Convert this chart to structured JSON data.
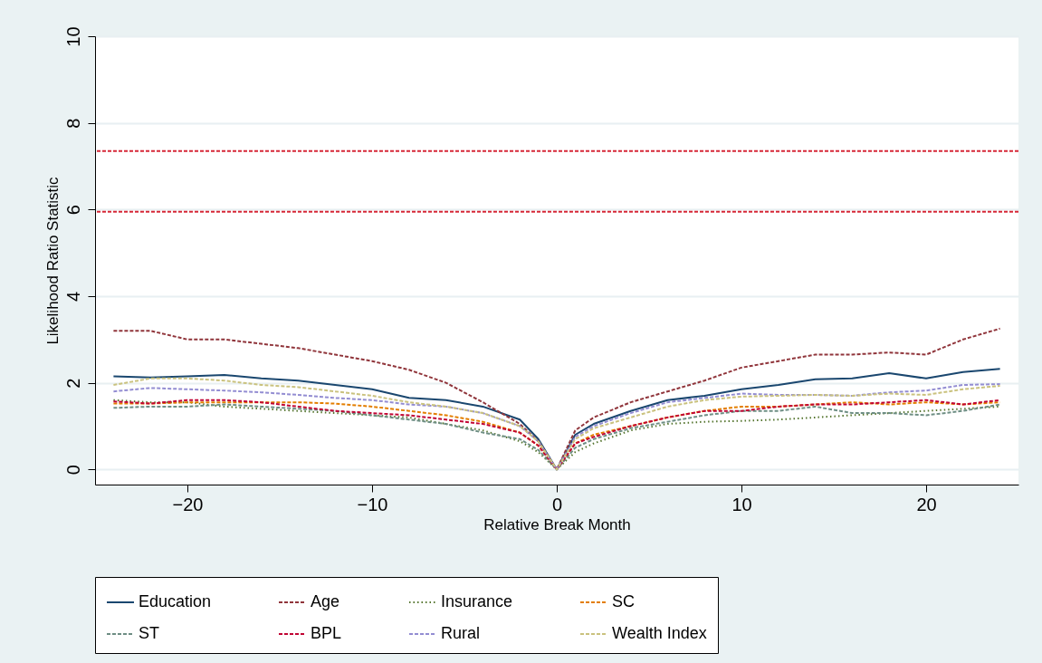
{
  "chart_data": {
    "type": "line",
    "xlabel": "Relative Break Month",
    "ylabel": "Likelihood Ratio Statistic",
    "x": [
      -24,
      -22,
      -20,
      -18,
      -16,
      -14,
      -12,
      -10,
      -8,
      -6,
      -4,
      -2,
      -1,
      0,
      1,
      2,
      4,
      6,
      8,
      10,
      12,
      14,
      16,
      18,
      20,
      22,
      24
    ],
    "series": [
      {
        "name": "Education",
        "color": "#1a476f",
        "line_style": "solid",
        "values": [
          2.15,
          2.12,
          2.15,
          2.18,
          2.1,
          2.05,
          1.95,
          1.85,
          1.65,
          1.6,
          1.45,
          1.15,
          0.7,
          0,
          0.8,
          1.05,
          1.35,
          1.6,
          1.7,
          1.85,
          1.95,
          2.08,
          2.1,
          2.22,
          2.1,
          2.25,
          2.32
        ]
      },
      {
        "name": "Age",
        "color": "#90353b",
        "line_style": "dashed",
        "values": [
          3.2,
          3.2,
          3.0,
          3.0,
          2.9,
          2.8,
          2.65,
          2.5,
          2.3,
          2.0,
          1.55,
          1.05,
          0.65,
          0,
          0.9,
          1.2,
          1.55,
          1.8,
          2.05,
          2.35,
          2.5,
          2.65,
          2.65,
          2.7,
          2.65,
          3.0,
          3.25
        ]
      },
      {
        "name": "Insurance",
        "color": "#55752f",
        "line_style": "dotted",
        "values": [
          1.6,
          1.55,
          1.55,
          1.45,
          1.4,
          1.35,
          1.3,
          1.25,
          1.2,
          1.05,
          0.9,
          0.65,
          0.4,
          0,
          0.4,
          0.6,
          0.9,
          1.05,
          1.1,
          1.12,
          1.15,
          1.2,
          1.25,
          1.3,
          1.35,
          1.4,
          1.45
        ]
      },
      {
        "name": "SC",
        "color": "#e37e00",
        "line_style": "dashed",
        "values": [
          1.52,
          1.52,
          1.55,
          1.55,
          1.55,
          1.55,
          1.52,
          1.45,
          1.35,
          1.25,
          1.1,
          0.85,
          0.55,
          0,
          0.6,
          0.8,
          1.0,
          1.2,
          1.35,
          1.45,
          1.45,
          1.5,
          1.55,
          1.5,
          1.55,
          1.5,
          1.55
        ]
      },
      {
        "name": "ST",
        "color": "#6e8e84",
        "line_style": "dashed",
        "values": [
          1.42,
          1.45,
          1.45,
          1.5,
          1.45,
          1.4,
          1.35,
          1.25,
          1.15,
          1.05,
          0.85,
          0.7,
          0.45,
          0,
          0.5,
          0.7,
          0.95,
          1.1,
          1.25,
          1.35,
          1.35,
          1.45,
          1.3,
          1.3,
          1.25,
          1.35,
          1.5
        ]
      },
      {
        "name": "BPL",
        "color": "#c10534",
        "line_style": "dashed",
        "values": [
          1.57,
          1.52,
          1.6,
          1.6,
          1.55,
          1.45,
          1.35,
          1.3,
          1.25,
          1.15,
          1.05,
          0.85,
          0.55,
          0,
          0.6,
          0.75,
          1.0,
          1.2,
          1.35,
          1.35,
          1.45,
          1.5,
          1.5,
          1.55,
          1.6,
          1.5,
          1.6
        ]
      },
      {
        "name": "Rural",
        "color": "#938dd2",
        "line_style": "dashed",
        "values": [
          1.8,
          1.88,
          1.85,
          1.82,
          1.78,
          1.72,
          1.65,
          1.6,
          1.5,
          1.45,
          1.3,
          1.0,
          0.65,
          0,
          0.75,
          1.0,
          1.3,
          1.55,
          1.65,
          1.75,
          1.72,
          1.72,
          1.7,
          1.78,
          1.82,
          1.95,
          1.97
        ]
      },
      {
        "name": "Wealth Index",
        "color": "#cac27e",
        "line_style": "dashed",
        "values": [
          1.95,
          2.1,
          2.1,
          2.05,
          1.95,
          1.9,
          1.8,
          1.7,
          1.55,
          1.45,
          1.3,
          1.0,
          0.65,
          0,
          0.7,
          0.95,
          1.2,
          1.45,
          1.6,
          1.68,
          1.7,
          1.72,
          1.7,
          1.75,
          1.72,
          1.85,
          1.93
        ]
      }
    ],
    "xlim": [
      -25,
      25
    ],
    "xticks": [
      -20,
      -10,
      0,
      10,
      20
    ],
    "ylim": [
      -0.35,
      10
    ],
    "yticks": [
      0,
      2,
      4,
      6,
      8,
      10
    ],
    "ref_lines": [
      {
        "axis": "y",
        "value": 7.35,
        "color": "#d62838",
        "line_style": "dashed"
      },
      {
        "axis": "y",
        "value": 5.95,
        "color": "#d62838",
        "line_style": "dashed"
      }
    ],
    "grid": "y",
    "legend": "bottom"
  }
}
